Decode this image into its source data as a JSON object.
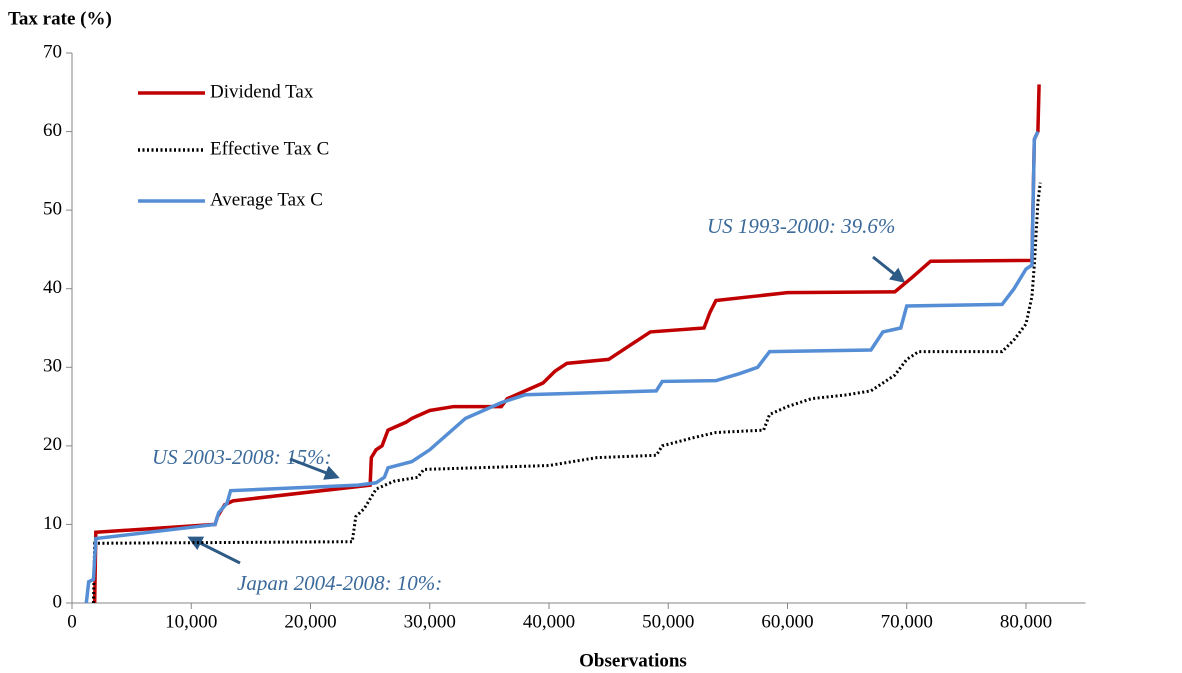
{
  "chart_data": {
    "type": "line",
    "title": "Tax rate (%)",
    "x_label": "Observations",
    "xlim": [
      0,
      85000
    ],
    "xticks": [
      0,
      {
        "value": 10000,
        "label": "10,000"
      },
      {
        "value": 20000,
        "label": "20,000"
      },
      {
        "value": 30000,
        "label": "30,000"
      },
      {
        "value": 40000,
        "label": "40,000"
      },
      {
        "value": 50000,
        "label": "50,000"
      },
      {
        "value": 60000,
        "label": "60,000"
      },
      {
        "value": 70000,
        "label": "70,000"
      },
      {
        "value": 80000,
        "label": "80,000"
      }
    ],
    "ylim": [
      0,
      70
    ],
    "yticks": [
      0,
      10,
      20,
      30,
      40,
      50,
      60,
      70
    ],
    "grid": false,
    "legend": "top-left",
    "series": [
      {
        "name": "Dividend Tax",
        "color": "#c00000",
        "style": "solid",
        "x": [
          1900,
          2000,
          12000,
          12200,
          12800,
          13500,
          25000,
          25100,
          25500,
          26000,
          26500,
          28000,
          28500,
          30000,
          32000,
          36000,
          36500,
          38000,
          39500,
          40500,
          41500,
          45000,
          47000,
          48500,
          53000,
          53500,
          54000,
          57000,
          60000,
          69000,
          70500,
          72000,
          80500,
          80700,
          81000,
          81100
        ],
        "values": [
          0,
          9,
          10,
          11,
          12.5,
          13,
          15,
          18.5,
          19.5,
          20,
          22,
          23,
          23.5,
          24.5,
          25,
          25,
          26,
          27,
          28,
          29.5,
          30.5,
          31,
          33,
          34.5,
          35,
          37,
          38.5,
          39,
          39.5,
          39.6,
          41.5,
          43.5,
          43.6,
          59,
          60,
          66
        ]
      },
      {
        "name": "Effective Tax C",
        "color": "#000000",
        "style": "dotted",
        "x": [
          1800,
          1900,
          23500,
          23800,
          24500,
          25500,
          27000,
          29000,
          29500,
          40000,
          44000,
          49000,
          49500,
          52000,
          54000,
          58000,
          58500,
          60000,
          62000,
          65000,
          67000,
          69000,
          70000,
          71000,
          78000,
          79000,
          80000,
          80500,
          80700,
          81000,
          81200
        ],
        "values": [
          0,
          7.6,
          7.8,
          11,
          12,
          14.5,
          15.5,
          16,
          17,
          17.5,
          18.5,
          18.8,
          20,
          21,
          21.7,
          22,
          24,
          25,
          26,
          26.5,
          27,
          29,
          31,
          32,
          32,
          33.5,
          35.5,
          39,
          43,
          51,
          53.5
        ]
      },
      {
        "name": "Average Tax C",
        "color": "#558ed5",
        "style": "solid",
        "x": [
          1200,
          1400,
          1800,
          2000,
          12000,
          12300,
          13000,
          13300,
          24000,
          25500,
          26200,
          26500,
          28500,
          30000,
          33000,
          36000,
          38000,
          49000,
          49500,
          54000,
          56000,
          57500,
          58500,
          67000,
          68000,
          69500,
          70000,
          78000,
          79000,
          80000,
          80500,
          80700,
          81000
        ],
        "values": [
          0,
          2.7,
          3,
          8.2,
          10,
          11.5,
          12.7,
          14.3,
          15,
          15.3,
          16,
          17.2,
          18,
          19.5,
          23.5,
          25.5,
          26.5,
          27,
          28.2,
          28.3,
          29.2,
          30,
          32,
          32.2,
          34.5,
          35,
          37.8,
          38,
          40,
          42.5,
          43,
          59,
          60
        ]
      }
    ],
    "annotations": [
      "US 1993-2000: 39.6%",
      "US 2003-2008: 15%:",
      "Japan 2004-2008: 10%:"
    ]
  }
}
